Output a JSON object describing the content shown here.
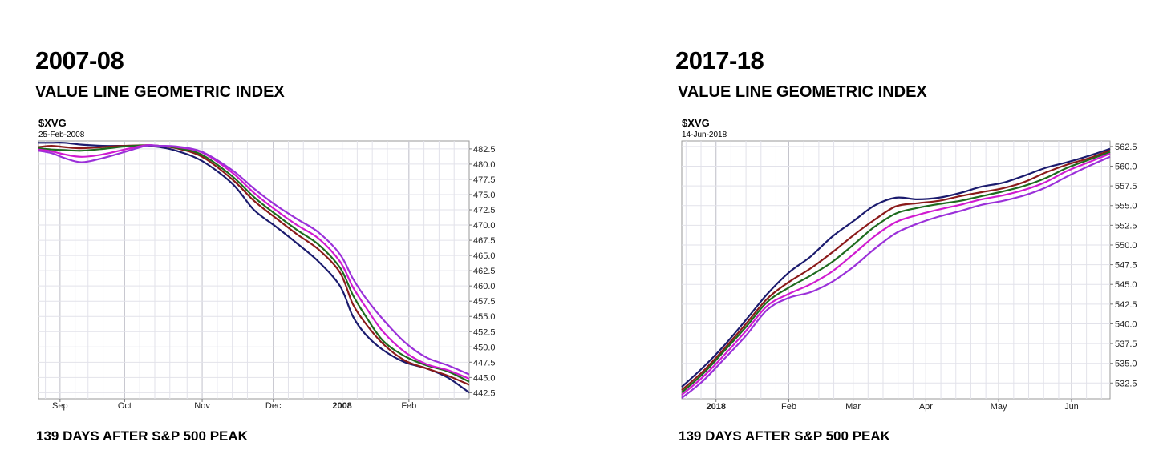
{
  "panels": [
    {
      "period": "2007-08",
      "title": "VALUE LINE GEOMETRIC INDEX",
      "footer": "139 DAYS AFTER S&P 500 PEAK"
    },
    {
      "period": "2017-18",
      "title": "VALUE LINE GEOMETRIC INDEX",
      "footer": "139 DAYS AFTER S&P 500 PEAK"
    }
  ],
  "chart_data": [
    {
      "type": "line",
      "symbol": "$XVG",
      "date": "25-Feb-2008",
      "y_ticks": [
        "482.5",
        "480.0",
        "477.5",
        "475.0",
        "472.5",
        "470.0",
        "467.5",
        "465.0",
        "462.5",
        "460.0",
        "457.5",
        "455.0",
        "452.5",
        "450.0",
        "447.5",
        "445.0",
        "442.5"
      ],
      "ylim": [
        441.5,
        483.8
      ],
      "xlim": [
        0,
        100
      ],
      "x_ticks": [
        {
          "label": "Sep",
          "x": 5,
          "bold": false
        },
        {
          "label": "Oct",
          "x": 20,
          "bold": false
        },
        {
          "label": "Nov",
          "x": 38,
          "bold": false
        },
        {
          "label": "Dec",
          "x": 54.5,
          "bold": false
        },
        {
          "label": "2008",
          "x": 70.5,
          "bold": true
        },
        {
          "label": "Feb",
          "x": 86,
          "bold": false
        }
      ],
      "x_grid": [
        1.6,
        5,
        8.5,
        11.5,
        15,
        20,
        23.5,
        27,
        30.5,
        34.5,
        38,
        41.5,
        45,
        48.5,
        54.5,
        58,
        61.5,
        65,
        70.5,
        74,
        77.5,
        81,
        86,
        89.5,
        93,
        96.5
      ],
      "grid": true,
      "series": [
        {
          "color": "#1b1b6e",
          "x": [
            0,
            3,
            6,
            10,
            15,
            20,
            25,
            28,
            32,
            38,
            45,
            50,
            55,
            60,
            65,
            70,
            73,
            76,
            80,
            85,
            90,
            95,
            100
          ],
          "y": [
            483.5,
            483.5,
            483.5,
            483.2,
            483.0,
            483.0,
            483.0,
            482.8,
            482.2,
            480.5,
            476.8,
            472.5,
            469.8,
            467.0,
            464.0,
            460.0,
            455.0,
            452.0,
            449.5,
            447.5,
            446.5,
            445.0,
            442.5
          ]
        },
        {
          "color": "#8b1a1a",
          "x": [
            0,
            3,
            6,
            10,
            15,
            20,
            25,
            28,
            32,
            38,
            45,
            50,
            55,
            60,
            65,
            70,
            73,
            76,
            80,
            85,
            90,
            95,
            100
          ],
          "y": [
            482.8,
            483.0,
            482.8,
            482.6,
            482.8,
            483.0,
            483.1,
            483.0,
            482.6,
            481.2,
            477.5,
            474.0,
            471.2,
            468.5,
            466.0,
            462.2,
            457.0,
            453.8,
            450.5,
            447.8,
            446.5,
            445.3,
            443.8
          ]
        },
        {
          "color": "#1e6b1e",
          "x": [
            0,
            3,
            6,
            10,
            15,
            20,
            25,
            28,
            32,
            38,
            45,
            50,
            55,
            60,
            65,
            70,
            73,
            76,
            80,
            85,
            90,
            95,
            100
          ],
          "y": [
            482.6,
            482.4,
            482.3,
            482.2,
            482.5,
            482.9,
            483.1,
            483.0,
            482.7,
            481.5,
            478.0,
            474.6,
            471.8,
            469.2,
            466.8,
            463.0,
            458.5,
            455.0,
            451.0,
            448.5,
            447.0,
            446.0,
            444.3
          ]
        },
        {
          "color": "#d01ad0",
          "x": [
            0,
            3,
            6,
            10,
            15,
            20,
            25,
            28,
            32,
            38,
            45,
            50,
            55,
            60,
            65,
            70,
            73,
            76,
            80,
            85,
            90,
            95,
            100
          ],
          "y": [
            482.4,
            482.1,
            481.6,
            481.2,
            481.6,
            482.4,
            483.1,
            483.0,
            482.8,
            481.9,
            478.6,
            475.3,
            472.5,
            470.0,
            467.8,
            464.0,
            459.8,
            456.5,
            452.5,
            449.2,
            447.2,
            446.2,
            444.8
          ]
        },
        {
          "color": "#9b30d9",
          "x": [
            0,
            3,
            6,
            10,
            15,
            20,
            25,
            28,
            32,
            38,
            45,
            50,
            55,
            60,
            65,
            70,
            73,
            76,
            80,
            85,
            90,
            95,
            100
          ],
          "y": [
            482.2,
            481.8,
            481.0,
            480.3,
            481.0,
            482.0,
            483.0,
            483.0,
            482.9,
            482.0,
            479.0,
            476.0,
            473.3,
            471.0,
            468.8,
            465.2,
            461.2,
            458.0,
            454.5,
            450.8,
            448.3,
            447.0,
            445.5
          ]
        }
      ]
    },
    {
      "type": "line",
      "symbol": "$XVG",
      "date": "14-Jun-2018",
      "y_ticks": [
        "562.5",
        "560.0",
        "557.5",
        "555.0",
        "552.5",
        "550.0",
        "547.5",
        "545.0",
        "542.5",
        "540.0",
        "537.5",
        "535.0",
        "532.5"
      ],
      "ylim": [
        530.5,
        563.2
      ],
      "xlim": [
        0,
        100
      ],
      "x_ticks": [
        {
          "label": "2018",
          "x": 8,
          "bold": true
        },
        {
          "label": "Feb",
          "x": 25,
          "bold": false
        },
        {
          "label": "Mar",
          "x": 40,
          "bold": false
        },
        {
          "label": "Apr",
          "x": 57,
          "bold": false
        },
        {
          "label": "May",
          "x": 74,
          "bold": false
        },
        {
          "label": "Jun",
          "x": 91,
          "bold": false
        }
      ],
      "x_grid": [
        1,
        4.5,
        8,
        11.5,
        15,
        18.5,
        22,
        25,
        28.5,
        32,
        35.5,
        40,
        43.5,
        47,
        50.5,
        54,
        57,
        60.5,
        64,
        67.5,
        71,
        74,
        77.5,
        81,
        84.5,
        88,
        91,
        94.5,
        98
      ],
      "grid": true,
      "series": [
        {
          "color": "#1b1b6e",
          "x": [
            0,
            5,
            10,
            15,
            20,
            25,
            30,
            35,
            40,
            45,
            50,
            55,
            60,
            65,
            70,
            75,
            80,
            85,
            90,
            95,
            100
          ],
          "y": [
            532.0,
            534.5,
            537.3,
            540.5,
            543.8,
            546.5,
            548.5,
            551.0,
            553.0,
            555.0,
            556.0,
            555.8,
            556.0,
            556.6,
            557.4,
            557.9,
            558.8,
            559.8,
            560.5,
            561.3,
            562.2
          ]
        },
        {
          "color": "#8b1a1a",
          "x": [
            0,
            5,
            10,
            15,
            20,
            25,
            30,
            35,
            40,
            45,
            50,
            55,
            60,
            65,
            70,
            75,
            80,
            85,
            90,
            95,
            100
          ],
          "y": [
            531.6,
            534.0,
            536.9,
            540.0,
            543.2,
            545.3,
            547.0,
            549.0,
            551.2,
            553.2,
            554.9,
            555.3,
            555.6,
            556.2,
            556.7,
            557.2,
            558.0,
            559.2,
            560.2,
            561.0,
            562.0
          ]
        },
        {
          "color": "#1e6b1e",
          "x": [
            0,
            5,
            10,
            15,
            20,
            25,
            30,
            35,
            40,
            45,
            50,
            55,
            60,
            65,
            70,
            75,
            80,
            85,
            90,
            95,
            100
          ],
          "y": [
            531.3,
            533.7,
            536.6,
            539.6,
            542.8,
            544.6,
            546.1,
            547.8,
            550.0,
            552.3,
            554.0,
            554.7,
            555.2,
            555.6,
            556.2,
            556.8,
            557.5,
            558.5,
            559.8,
            560.8,
            561.8
          ]
        },
        {
          "color": "#d01ad0",
          "x": [
            0,
            5,
            10,
            15,
            20,
            25,
            30,
            35,
            40,
            45,
            50,
            55,
            60,
            65,
            70,
            75,
            80,
            85,
            90,
            95,
            100
          ],
          "y": [
            531.0,
            533.3,
            536.1,
            539.1,
            542.3,
            543.8,
            545.0,
            546.6,
            548.8,
            551.1,
            552.9,
            553.8,
            554.5,
            555.1,
            555.8,
            556.3,
            557.0,
            558.0,
            559.4,
            560.5,
            561.6
          ]
        },
        {
          "color": "#9b30d9",
          "x": [
            0,
            5,
            10,
            15,
            20,
            25,
            30,
            35,
            40,
            45,
            50,
            55,
            60,
            65,
            70,
            75,
            80,
            85,
            90,
            95,
            100
          ],
          "y": [
            530.6,
            532.8,
            535.6,
            538.5,
            541.8,
            543.3,
            544.0,
            545.3,
            547.2,
            549.5,
            551.5,
            552.7,
            553.6,
            554.3,
            555.1,
            555.6,
            556.3,
            557.3,
            558.7,
            560.0,
            561.2
          ]
        }
      ]
    }
  ]
}
